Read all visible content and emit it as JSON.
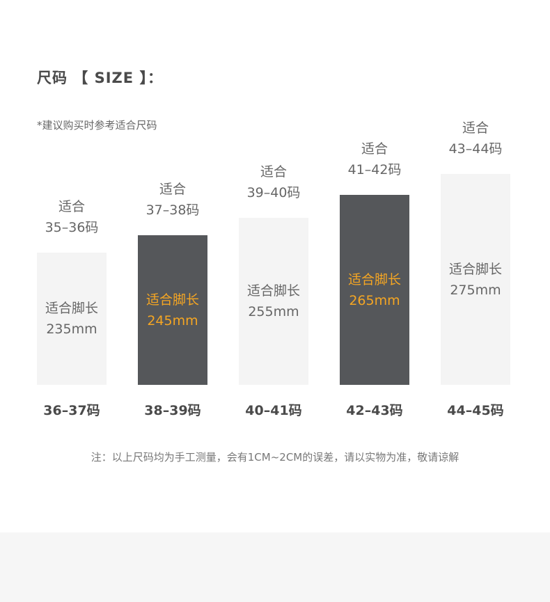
{
  "title": "尺码 【 SIZE 】：",
  "subtitle": "*建议购买时参考适合尺码",
  "colors": {
    "light_bar": "#f4f4f4",
    "dark_bar": "#55575a",
    "highlight_text": "#f5a623"
  },
  "items": [
    {
      "fit_label": "适合",
      "fit_range": "35–36码",
      "foot_label": "适合脚长",
      "foot_length": "235mm",
      "size": "36–37码",
      "highlight": false
    },
    {
      "fit_label": "适合",
      "fit_range": "37–38码",
      "foot_label": "适合脚长",
      "foot_length": "245mm",
      "size": "38–39码",
      "highlight": true
    },
    {
      "fit_label": "适合",
      "fit_range": "39–40码",
      "foot_label": "适合脚长",
      "foot_length": "255mm",
      "size": "40–41码",
      "highlight": false
    },
    {
      "fit_label": "适合",
      "fit_range": "41–42码",
      "foot_label": "适合脚长",
      "foot_length": "265mm",
      "size": "42–43码",
      "highlight": true
    },
    {
      "fit_label": "适合",
      "fit_range": "43–44码",
      "foot_label": "适合脚长",
      "foot_length": "275mm",
      "size": "44–45码",
      "highlight": false
    }
  ],
  "footnote": "注：以上尺码均为手工测量，会有1CM~2CM的误差，请以实物为准，敬请谅解"
}
